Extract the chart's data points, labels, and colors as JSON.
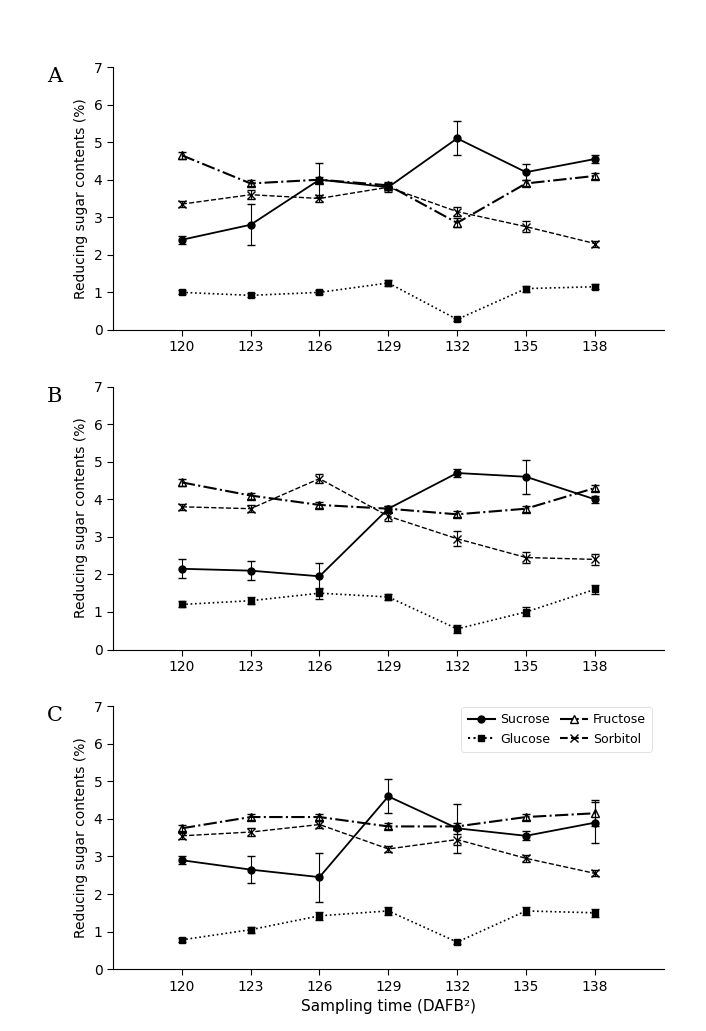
{
  "x": [
    120,
    123,
    126,
    129,
    132,
    135,
    138
  ],
  "panels": [
    "A",
    "B",
    "C"
  ],
  "panel_A": {
    "sucrose": {
      "y": [
        2.4,
        2.8,
        4.0,
        3.8,
        5.1,
        4.2,
        4.55
      ],
      "yerr": [
        0.1,
        0.55,
        0.45,
        0.12,
        0.45,
        0.22,
        0.1
      ]
    },
    "glucose": {
      "y": [
        1.0,
        0.92,
        1.0,
        1.25,
        0.28,
        1.1,
        1.15
      ],
      "yerr": [
        0.05,
        0.05,
        0.05,
        0.08,
        0.05,
        0.08,
        0.07
      ]
    },
    "fructose": {
      "y": [
        4.65,
        3.9,
        4.0,
        3.85,
        2.85,
        3.9,
        4.1
      ],
      "yerr": [
        0.1,
        0.08,
        0.08,
        0.08,
        0.12,
        0.08,
        0.08
      ]
    },
    "sorbitol": {
      "y": [
        3.35,
        3.6,
        3.5,
        3.8,
        3.15,
        2.75,
        2.3
      ],
      "yerr": [
        0.08,
        0.12,
        0.1,
        0.08,
        0.12,
        0.15,
        0.08
      ]
    }
  },
  "panel_B": {
    "sucrose": {
      "y": [
        2.15,
        2.1,
        1.95,
        3.75,
        4.7,
        4.6,
        4.0
      ],
      "yerr": [
        0.25,
        0.25,
        0.35,
        0.08,
        0.1,
        0.45,
        0.1
      ]
    },
    "glucose": {
      "y": [
        1.2,
        1.3,
        1.5,
        1.4,
        0.55,
        1.0,
        1.6
      ],
      "yerr": [
        0.08,
        0.1,
        0.15,
        0.08,
        0.1,
        0.12,
        0.12
      ]
    },
    "fructose": {
      "y": [
        4.45,
        4.1,
        3.85,
        3.75,
        3.6,
        3.75,
        4.3
      ],
      "yerr": [
        0.1,
        0.08,
        0.08,
        0.08,
        0.08,
        0.08,
        0.08
      ]
    },
    "sorbitol": {
      "y": [
        3.8,
        3.75,
        4.55,
        3.55,
        2.95,
        2.45,
        2.4
      ],
      "yerr": [
        0.08,
        0.1,
        0.12,
        0.12,
        0.2,
        0.15,
        0.15
      ]
    }
  },
  "panel_C": {
    "sucrose": {
      "y": [
        2.9,
        2.65,
        2.45,
        4.6,
        3.75,
        3.55,
        3.9
      ],
      "yerr": [
        0.1,
        0.35,
        0.65,
        0.45,
        0.65,
        0.12,
        0.55
      ]
    },
    "glucose": {
      "y": [
        0.78,
        1.05,
        1.42,
        1.55,
        0.72,
        1.55,
        1.5
      ],
      "yerr": [
        0.05,
        0.08,
        0.1,
        0.1,
        0.05,
        0.1,
        0.1
      ]
    },
    "fructose": {
      "y": [
        3.75,
        4.05,
        4.05,
        3.8,
        3.8,
        4.05,
        4.15
      ],
      "yerr": [
        0.08,
        0.08,
        0.08,
        0.08,
        0.08,
        0.08,
        0.35
      ]
    },
    "sorbitol": {
      "y": [
        3.55,
        3.65,
        3.85,
        3.2,
        3.45,
        2.95,
        2.55
      ],
      "yerr": [
        0.08,
        0.1,
        0.1,
        0.08,
        0.15,
        0.1,
        0.08
      ]
    }
  },
  "ylabel": "Reducing sugar contents (%)",
  "xlabel": "Sampling time (DAFB²)",
  "ylim": [
    0,
    7
  ],
  "yticks": [
    0,
    1,
    2,
    3,
    4,
    5,
    6,
    7
  ],
  "legend_sucrose": "Sucrose",
  "legend_glucose": "Glucose",
  "legend_fructose": "Fructose",
  "legend_sorbitol": "Sorbitol"
}
